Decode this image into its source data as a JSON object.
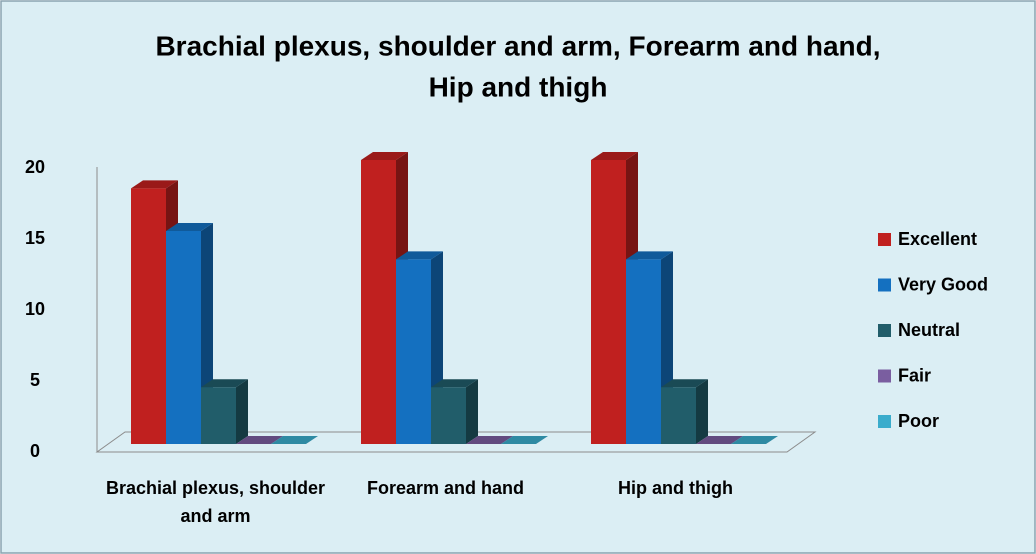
{
  "chart_data": {
    "type": "bar3d",
    "title": [
      "Brachial plexus, shoulder and arm, Forearm and hand,",
      "Hip and thigh"
    ],
    "categories": [
      "Brachial plexus, shoulder and arm",
      "Forearm and hand",
      "Hip and thigh"
    ],
    "series": [
      {
        "name": "Excellent",
        "color": "#c0201f",
        "values": [
          18,
          20,
          20
        ]
      },
      {
        "name": "Very Good",
        "color": "#1470c0",
        "values": [
          15,
          13,
          13
        ]
      },
      {
        "name": "Neutral",
        "color": "#215d6a",
        "values": [
          4,
          4,
          4
        ]
      },
      {
        "name": "Fair",
        "color": "#7a5ea0",
        "values": [
          0,
          0,
          0
        ]
      },
      {
        "name": "Poor",
        "color": "#3aaccc",
        "values": [
          0,
          0,
          0
        ]
      }
    ],
    "ylim": [
      0,
      20
    ],
    "yticks": [
      0,
      5,
      10,
      15,
      20
    ],
    "grid": false,
    "legend": "right"
  }
}
